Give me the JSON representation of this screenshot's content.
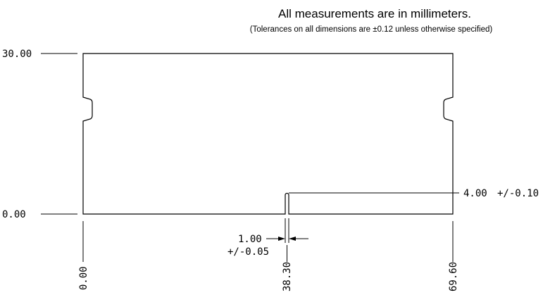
{
  "notes": {
    "units": "All measurements are in millimeters.",
    "tolerance": "(Tolerances on all dimensions are ±0.12 unless otherwise specified)"
  },
  "dimensions": {
    "y_top": "30.00",
    "y_bottom": "0.00",
    "x_left": "0.00",
    "x_slot": "38.30",
    "x_right": "69.60",
    "slot_depth": "4.00",
    "slot_depth_tol": "+/-0.10",
    "slot_width": "1.00",
    "slot_width_tol": "+/-0.05"
  }
}
